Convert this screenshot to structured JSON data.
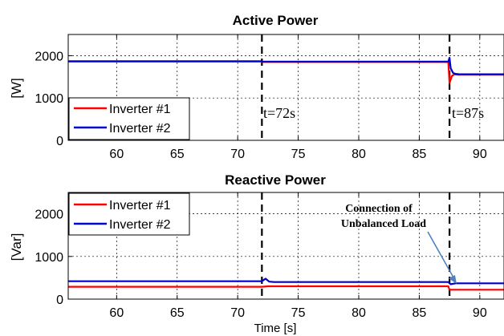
{
  "chart_data": [
    {
      "type": "line",
      "title": "Active Power",
      "xlabel": "",
      "ylabel": "[W]",
      "xlim": [
        56,
        92
      ],
      "ylim": [
        0,
        2500
      ],
      "xticks": [
        60,
        65,
        70,
        75,
        80,
        85,
        90
      ],
      "yticks": [
        0,
        1000,
        2000
      ],
      "grid": true,
      "legend_position": "lower-left",
      "events": [
        {
          "x": 72,
          "label": "t=72s"
        },
        {
          "x": 87.5,
          "label": "t=87s"
        }
      ],
      "series": [
        {
          "name": "Inverter #1",
          "color": "#ff0000",
          "x": [
            56,
            72,
            72,
            87.4,
            87.5,
            87.7,
            87.9,
            88.2,
            92
          ],
          "y": [
            1860,
            1860,
            1850,
            1850,
            1350,
            1520,
            1560,
            1550,
            1550
          ]
        },
        {
          "name": "Inverter #2",
          "color": "#0000cc",
          "x": [
            56,
            72,
            72,
            87.4,
            87.5,
            87.6,
            87.8,
            88.0,
            88.3,
            92
          ],
          "y": [
            1870,
            1870,
            1858,
            1858,
            1950,
            1700,
            1590,
            1570,
            1560,
            1560
          ]
        }
      ]
    },
    {
      "type": "line",
      "title": "Reactive Power",
      "xlabel": "Time [s]",
      "ylabel": "[Var]",
      "xlim": [
        56,
        92
      ],
      "ylim": [
        0,
        2500
      ],
      "xticks": [
        60,
        65,
        70,
        75,
        80,
        85,
        90
      ],
      "yticks": [
        0,
        1000,
        2000
      ],
      "grid": true,
      "legend_position": "upper-left",
      "annotation": "Connection of\nUnbalanced Load",
      "events": [
        {
          "x": 72,
          "label": ""
        },
        {
          "x": 87.5,
          "label": ""
        }
      ],
      "series": [
        {
          "name": "Inverter #1",
          "color": "#ff0000",
          "x": [
            56,
            72,
            72.5,
            87.4,
            87.5,
            92
          ],
          "y": [
            290,
            290,
            300,
            300,
            220,
            220
          ]
        },
        {
          "name": "Inverter #2",
          "color": "#0000cc",
          "x": [
            56,
            72,
            72.3,
            72.6,
            73,
            87.4,
            87.6,
            88,
            92
          ],
          "y": [
            420,
            420,
            480,
            410,
            400,
            400,
            350,
            370,
            370
          ]
        }
      ]
    }
  ]
}
